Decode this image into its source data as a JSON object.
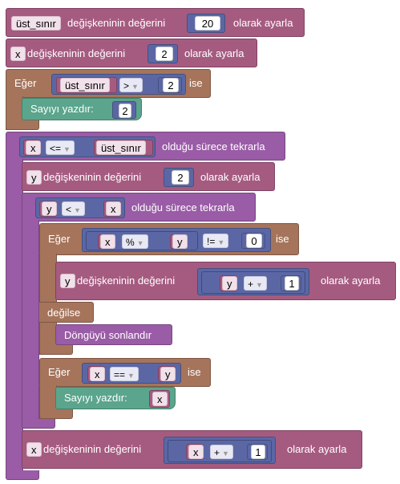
{
  "blocks": {
    "b1": {
      "var": "üst_sınır",
      "text_mid": "değişkeninin değerini",
      "value": "20",
      "text_end": "olarak ayarla"
    },
    "b2": {
      "var": "x",
      "text_mid": "değişkeninin değerini",
      "value": "2",
      "text_end": "olarak ayarla"
    },
    "b3": {
      "label_if": "Eğer",
      "var": "üst_sınır",
      "op": ">",
      "value": "2",
      "label_then": "ise",
      "print_label": "Sayıyı yazdır:",
      "print_value": "2"
    },
    "b4": {
      "var_left": "x",
      "op": "<=",
      "var_right": "üst_sınır",
      "text_end": "olduğu sürece tekrarla"
    },
    "b5": {
      "var": "y",
      "text_mid": "değişkeninin değerini",
      "value": "2",
      "text_end": "olarak ayarla"
    },
    "b6": {
      "var_left": "y",
      "op": "<",
      "var_right": "x",
      "text_end": "olduğu sürece tekrarla"
    },
    "b7": {
      "label_if": "Eğer",
      "var_a": "x",
      "mod_op": "%",
      "var_b": "y",
      "cmp_op": "!=",
      "value": "0",
      "label_then": "ise",
      "set_var": "y",
      "set_text": "değişkeninin değerini",
      "add_var": "y",
      "add_op": "+",
      "add_value": "1",
      "set_end": "olarak ayarla",
      "else_label": "değilse",
      "break_label": "Döngüyü sonlandır"
    },
    "b8": {
      "label_if": "Eğer",
      "var_left": "x",
      "op": "==",
      "var_right": "y",
      "label_then": "ise",
      "print_label": "Sayıyı yazdır:",
      "print_var": "x"
    },
    "b9": {
      "var": "x",
      "text_mid": "değişkeninin değerini",
      "add_var": "x",
      "add_op": "+",
      "add_value": "1",
      "text_end": "olarak ayarla"
    }
  },
  "colors": {
    "variable": "#a55b80",
    "control": "#a5745b",
    "loop": "#9a5ca6",
    "print": "#5ba58c",
    "math": "#5b67a5"
  }
}
